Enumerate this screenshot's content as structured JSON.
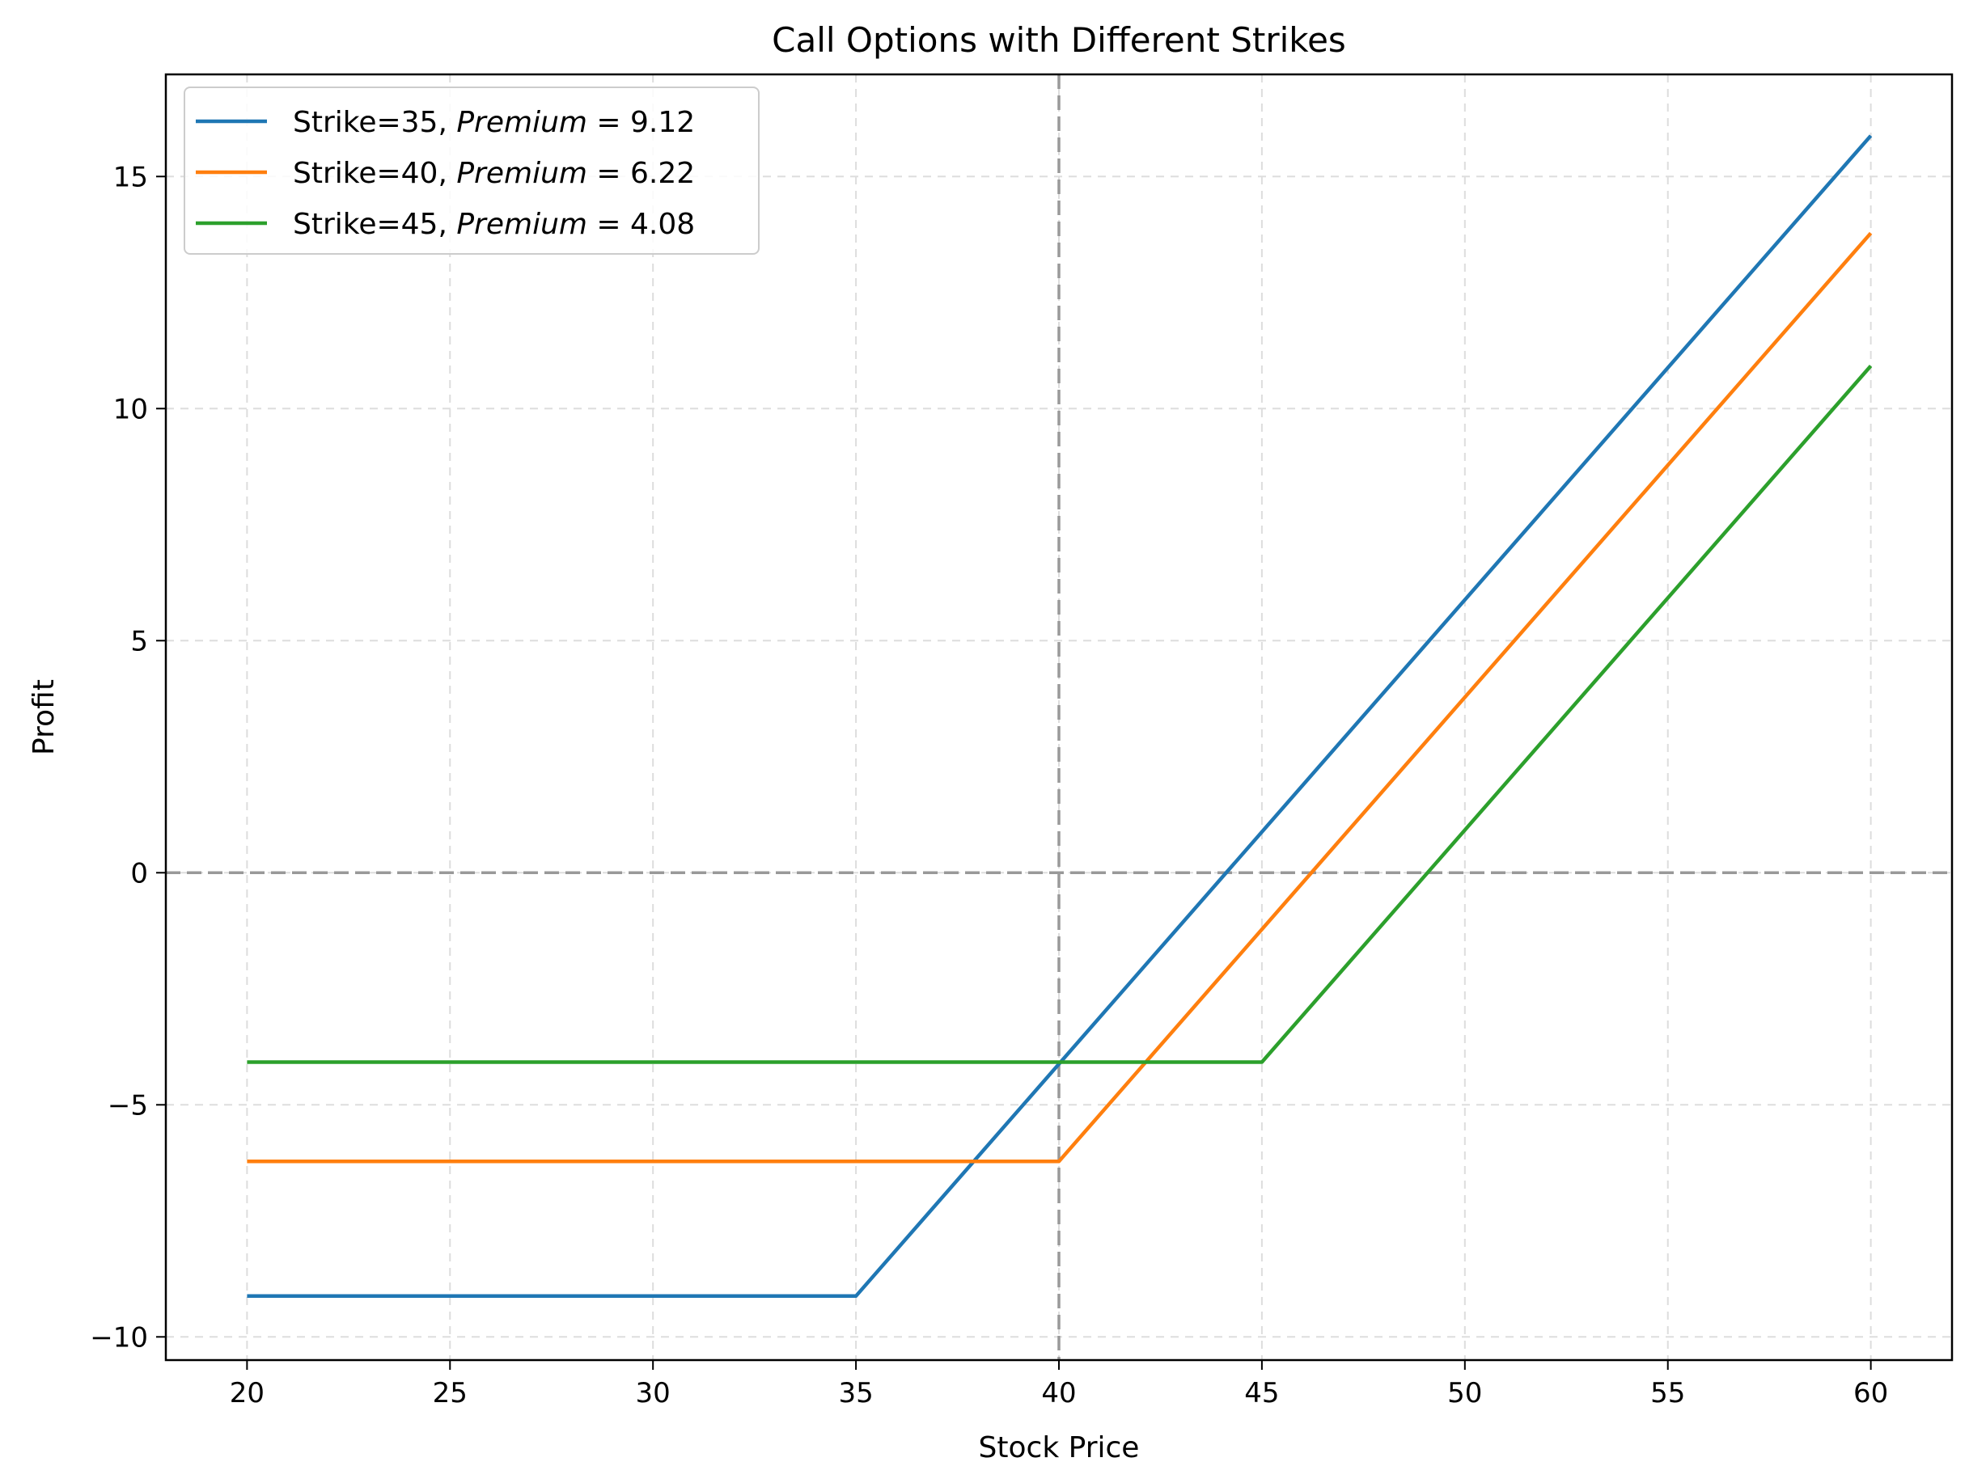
{
  "chart_data": {
    "type": "line",
    "title": "Call Options with Different Strikes",
    "xlabel": "Stock Price",
    "ylabel": "Profit",
    "xlim": [
      18,
      62
    ],
    "ylim": [
      -10.5,
      17.2
    ],
    "xticks": [
      20,
      25,
      30,
      35,
      40,
      45,
      50,
      55,
      60
    ],
    "yticks": [
      -10,
      -5,
      0,
      5,
      10,
      15
    ],
    "ytick_labels": [
      "−10",
      "−5",
      "0",
      "5",
      "10",
      "15"
    ],
    "grid": true,
    "legend_position": "top-left",
    "reference_lines": [
      {
        "orientation": "horizontal",
        "value": 0,
        "color": "#999999"
      },
      {
        "orientation": "vertical",
        "value": 40,
        "color": "#999999"
      }
    ],
    "series": [
      {
        "name": "Strike=35, Premium = 9.12",
        "label_plain": "Strike=35,",
        "label_math": "Premium",
        "label_value": "= 9.12",
        "color": "#1f77b4",
        "x": [
          20,
          35,
          60
        ],
        "y": [
          -9.12,
          -9.12,
          15.88
        ]
      },
      {
        "name": "Strike=40, Premium = 6.22",
        "label_plain": "Strike=40,",
        "label_math": "Premium",
        "label_value": "= 6.22",
        "color": "#ff7f0e",
        "x": [
          20,
          40,
          60
        ],
        "y": [
          -6.22,
          -6.22,
          13.78
        ]
      },
      {
        "name": "Strike=45, Premium = 4.08",
        "label_plain": "Strike=45,",
        "label_math": "Premium",
        "label_value": "= 4.08",
        "color": "#2ca02c",
        "x": [
          20,
          45,
          60
        ],
        "y": [
          -4.08,
          -4.08,
          10.92
        ]
      }
    ]
  }
}
